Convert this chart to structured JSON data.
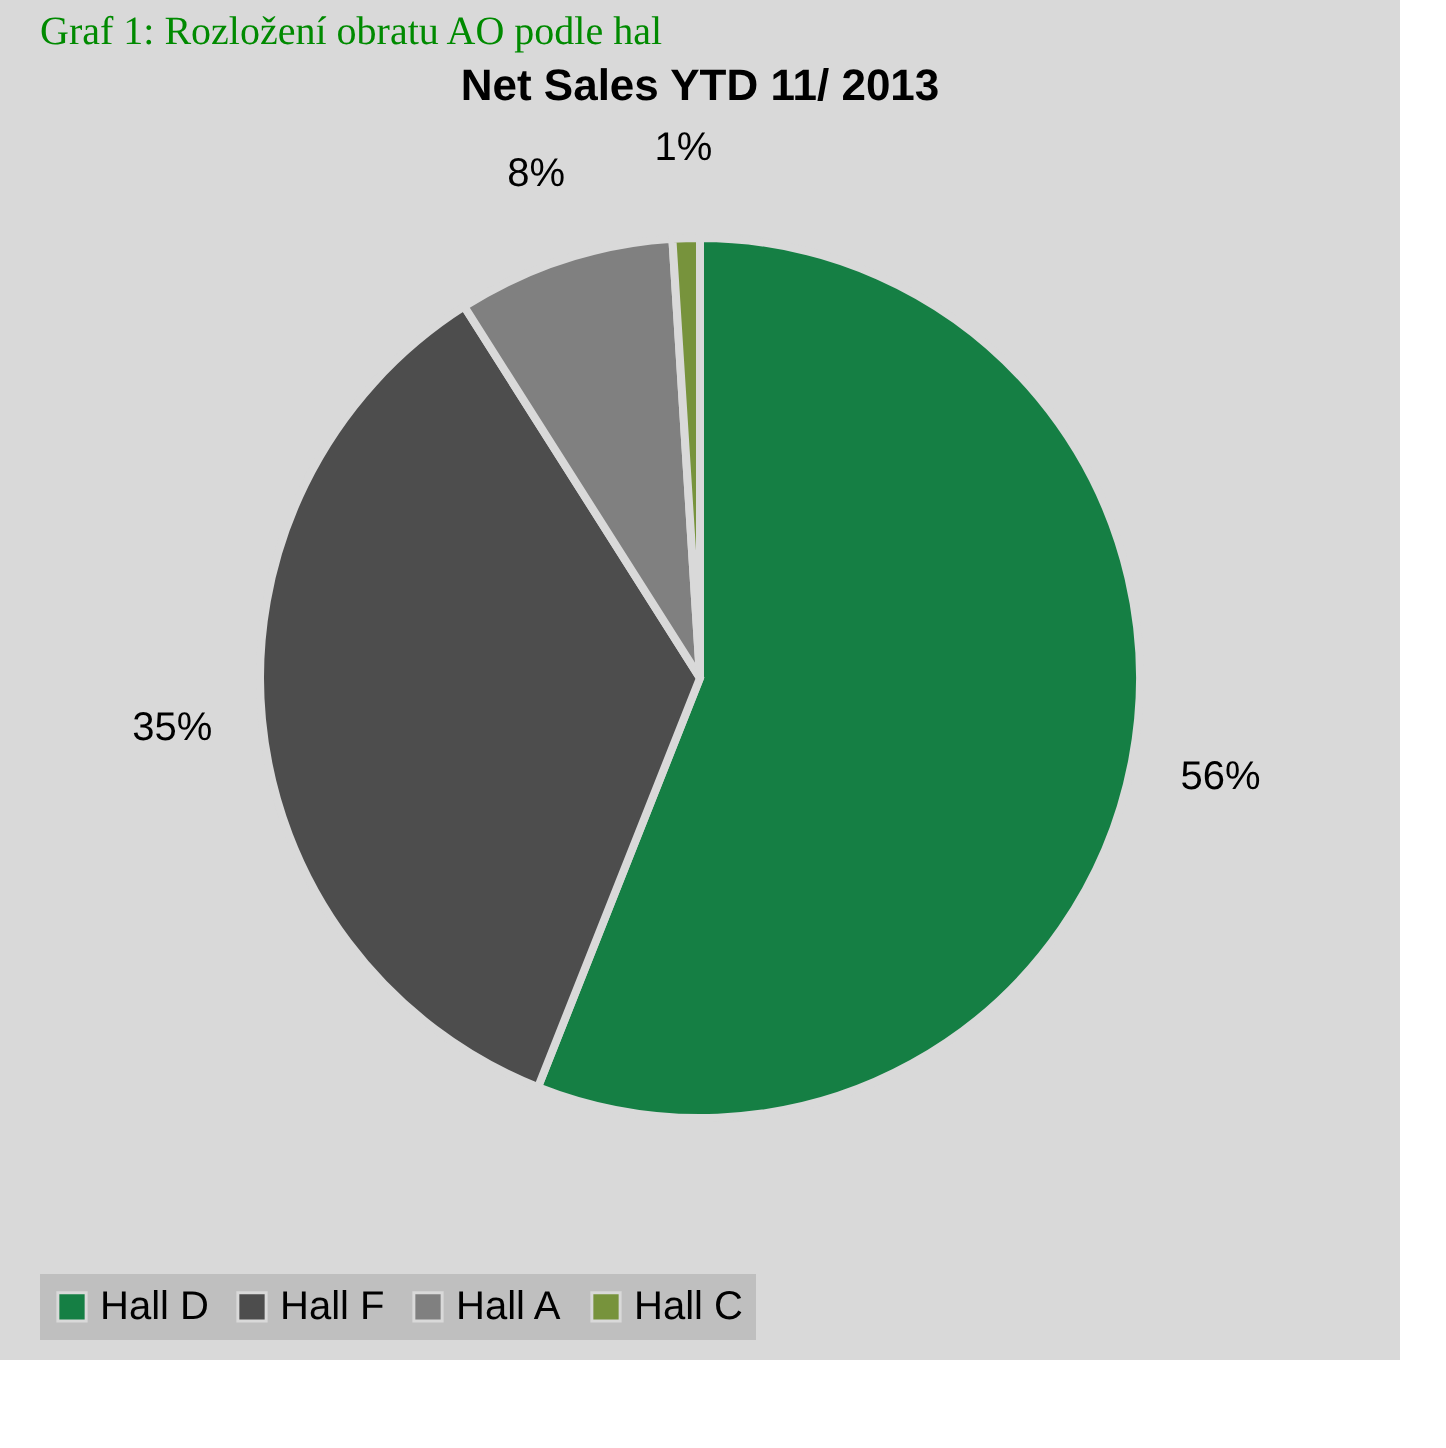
{
  "chart_data": {
    "type": "pie",
    "title": "Net Sales YTD 11/ 2013",
    "annotations": [
      "Graf 1: Rozložení obratu AO podle hal"
    ],
    "categories": [
      "Hall D",
      "Hall F",
      "Hall A",
      "Hall C"
    ],
    "values": [
      56,
      35,
      8,
      1
    ],
    "value_labels": [
      "56%",
      "35%",
      "8%",
      "1%"
    ],
    "colors": [
      "#157f44",
      "#4d4d4d",
      "#808080",
      "#77933c"
    ],
    "legend": "bottom"
  }
}
